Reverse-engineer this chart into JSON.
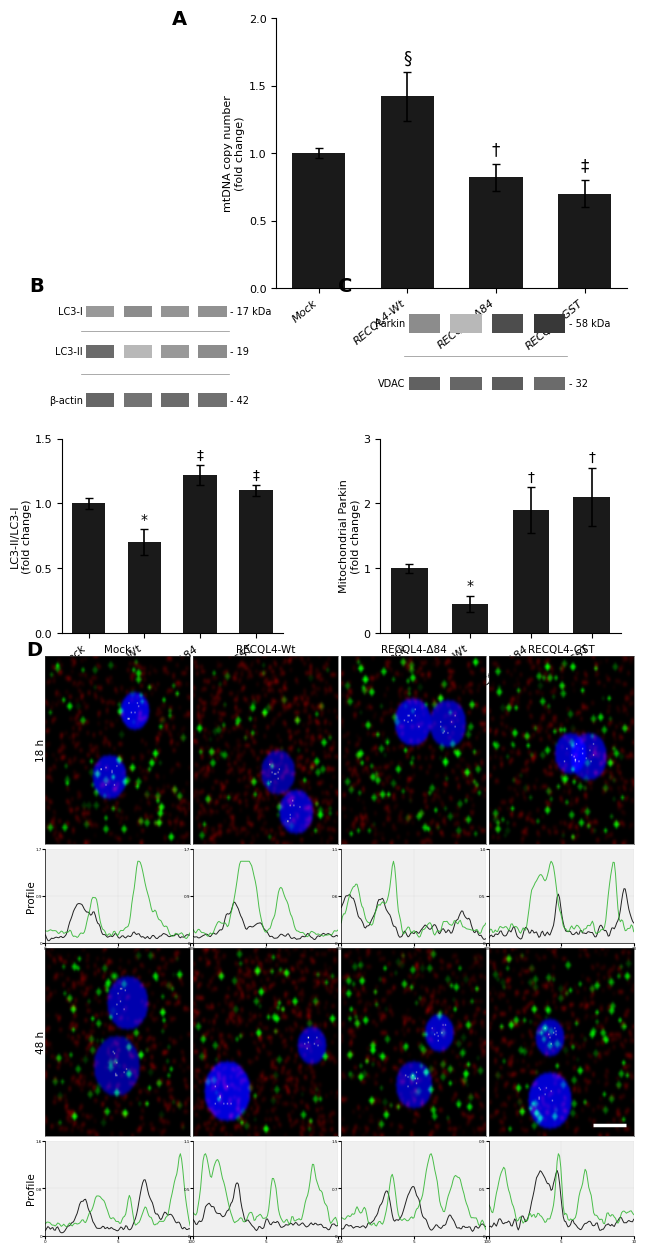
{
  "panel_A": {
    "categories": [
      "Mock",
      "RECQL4-Wt",
      "RECQL4-Δ84",
      "RECQL4-GST"
    ],
    "values": [
      1.0,
      1.42,
      0.82,
      0.7
    ],
    "errors": [
      0.04,
      0.18,
      0.1,
      0.1
    ],
    "ylabel": "mtDNA copy number\n(fold change)",
    "ylim": [
      0,
      2.0
    ],
    "yticks": [
      0,
      0.5,
      1.0,
      1.5,
      2.0
    ],
    "annotations": [
      "",
      "§",
      "†",
      "‡"
    ],
    "bar_color": "#1a1a1a",
    "label": "A"
  },
  "panel_B_bars": {
    "categories": [
      "Mock",
      "RECQL4-Wt",
      "RECQL4-Δ84",
      "RECQL4-GST"
    ],
    "values": [
      1.0,
      0.7,
      1.22,
      1.1
    ],
    "errors": [
      0.04,
      0.1,
      0.08,
      0.04
    ],
    "ylabel": "LC3-II/LC3-I\n(fold change)",
    "ylim": [
      0,
      1.5
    ],
    "yticks": [
      0,
      0.5,
      1.0,
      1.5
    ],
    "annotations": [
      "",
      "*",
      "‡",
      "‡"
    ],
    "bar_color": "#1a1a1a",
    "label": "B"
  },
  "panel_C_bars": {
    "categories": [
      "Mock",
      "RECQL4-Wt",
      "RECQL4-Δ84",
      "RECQL4-GST"
    ],
    "values": [
      1.0,
      0.45,
      1.9,
      2.1
    ],
    "errors": [
      0.07,
      0.12,
      0.35,
      0.45
    ],
    "ylabel": "Mitochondrial Parkin\n(fold change)",
    "ylim": [
      0,
      3.0
    ],
    "yticks": [
      0,
      1,
      2,
      3
    ],
    "annotations": [
      "",
      "*",
      "†",
      "†"
    ],
    "bar_color": "#1a1a1a",
    "label": "C"
  },
  "panel_B_wb": {
    "band_labels": [
      "LC3-I",
      "LC3-II",
      "β-actin"
    ],
    "band_kda": [
      "- 17 kDa",
      "- 19",
      "- 42"
    ],
    "lc3i_intensities": [
      0.6,
      0.55,
      0.58,
      0.57
    ],
    "lc3ii_intensities": [
      0.42,
      0.72,
      0.6,
      0.55
    ],
    "actin_intensities": [
      0.4,
      0.45,
      0.42,
      0.44
    ]
  },
  "panel_C_wb": {
    "band_labels": [
      "Parkin",
      "VDAC"
    ],
    "band_kda": [
      "- 58 kDa",
      "- 32"
    ],
    "parkin_intensities": [
      0.55,
      0.72,
      0.3,
      0.22
    ],
    "vdac_intensities": [
      0.38,
      0.4,
      0.36,
      0.42
    ]
  },
  "panel_D": {
    "col_labels": [
      "Mock",
      "RECQL4-Wt",
      "RECQL4-Δ84",
      "RECQL4-GST"
    ],
    "label": "D"
  },
  "figure_bg": "#ffffff"
}
